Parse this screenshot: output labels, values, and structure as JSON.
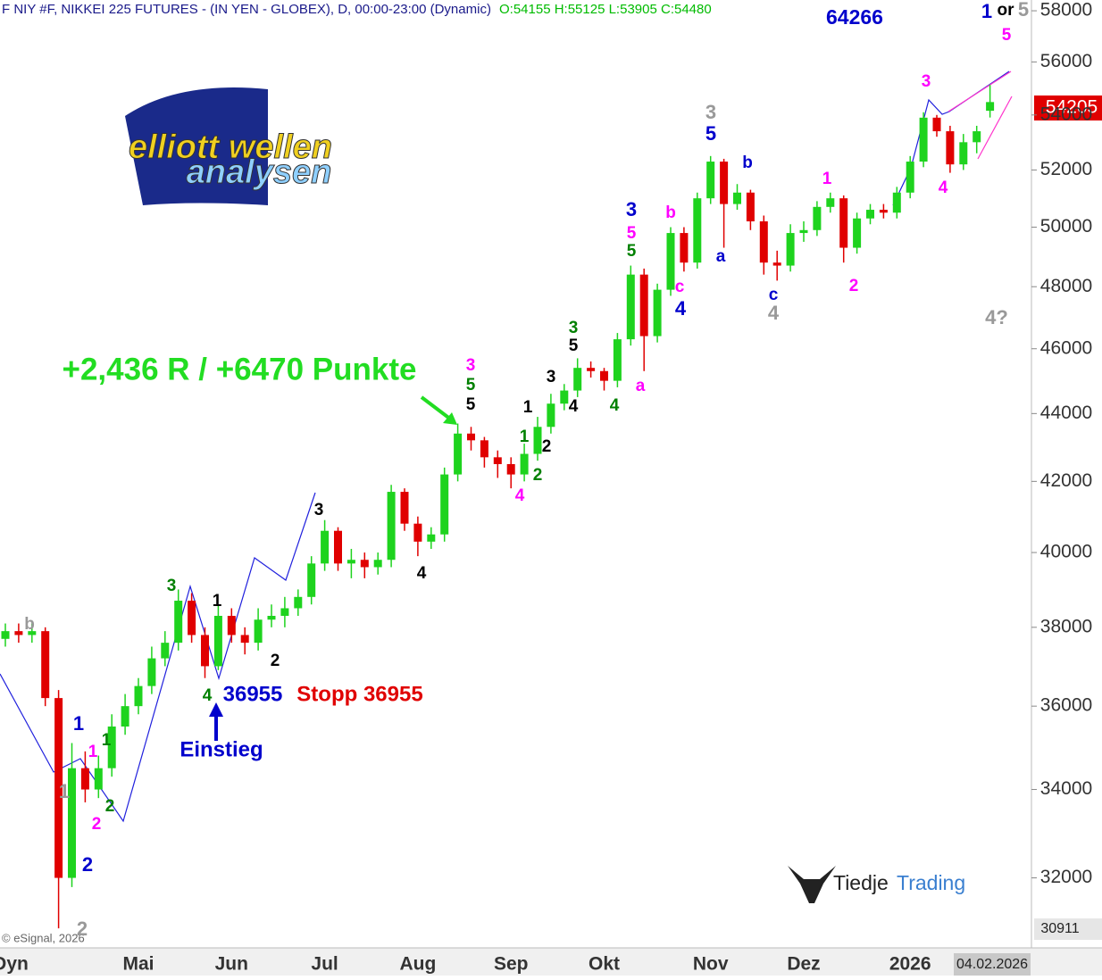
{
  "chart_data": {
    "type": "candlestick",
    "title": "F NIY #F, NIKKEI 225 FUTURES - (IN YEN - GLOBEX), D, 00:00-23:00 (Dynamic)",
    "ohlc_header": "O:54155 H:55125 L:53905 C:54480",
    "log_scale": true,
    "ylim": [
      30500,
      58430
    ],
    "yticks": [
      32000,
      34000,
      36000,
      38000,
      40000,
      42000,
      44000,
      46000,
      48000,
      50000,
      52000,
      54000,
      56000,
      58000
    ],
    "up_color": "#1ed31e",
    "down_color": "#e00000",
    "categories": [
      "Dyn",
      null,
      null,
      null,
      null,
      null,
      null,
      null,
      null,
      null,
      "Mai",
      null,
      null,
      null,
      null,
      null,
      null,
      "Jun",
      null,
      null,
      null,
      null,
      null,
      null,
      "Jul",
      null,
      null,
      null,
      null,
      null,
      null,
      "Aug",
      null,
      null,
      null,
      null,
      null,
      null,
      "Sep",
      null,
      null,
      null,
      null,
      null,
      null,
      "Okt",
      null,
      null,
      null,
      null,
      null,
      null,
      null,
      "Nov",
      null,
      null,
      null,
      null,
      null,
      null,
      "Dez",
      null,
      null,
      null,
      null,
      null,
      null,
      null,
      "2026",
      null,
      null,
      null,
      null,
      null,
      null,
      null
    ],
    "ohlc": [
      [
        37700,
        38100,
        37500,
        37900
      ],
      [
        37900,
        38100,
        37600,
        37800
      ],
      [
        37800,
        38100,
        37600,
        37900
      ],
      [
        37900,
        38000,
        36000,
        36200
      ],
      [
        36200,
        36400,
        30911,
        32000
      ],
      [
        32000,
        35100,
        31800,
        34500
      ],
      [
        34500,
        34900,
        33700,
        34000
      ],
      [
        34000,
        34800,
        33800,
        34500
      ],
      [
        34500,
        35800,
        34300,
        35500
      ],
      [
        35500,
        36300,
        35300,
        36000
      ],
      [
        36000,
        36700,
        35800,
        36500
      ],
      [
        36500,
        37500,
        36300,
        37200
      ],
      [
        37200,
        37900,
        37000,
        37600
      ],
      [
        37600,
        39000,
        37400,
        38700
      ],
      [
        38700,
        38900,
        37600,
        37800
      ],
      [
        37800,
        38000,
        36700,
        37000
      ],
      [
        37000,
        38600,
        36900,
        38300
      ],
      [
        38300,
        38500,
        37600,
        37800
      ],
      [
        37800,
        38000,
        37300,
        37600
      ],
      [
        37600,
        38500,
        37400,
        38200
      ],
      [
        38200,
        38600,
        38000,
        38300
      ],
      [
        38300,
        38800,
        38000,
        38500
      ],
      [
        38500,
        39000,
        38300,
        38800
      ],
      [
        38800,
        39900,
        38600,
        39700
      ],
      [
        39700,
        40900,
        39500,
        40600
      ],
      [
        40600,
        40700,
        39500,
        39700
      ],
      [
        39700,
        40100,
        39300,
        39800
      ],
      [
        39800,
        40000,
        39300,
        39600
      ],
      [
        39600,
        40000,
        39400,
        39800
      ],
      [
        39800,
        41900,
        39600,
        41700
      ],
      [
        41700,
        41800,
        40600,
        40800
      ],
      [
        40800,
        41000,
        39900,
        40300
      ],
      [
        40300,
        40700,
        40100,
        40500
      ],
      [
        40500,
        42400,
        40300,
        42200
      ],
      [
        42200,
        43700,
        42000,
        43400
      ],
      [
        43400,
        43600,
        42900,
        43200
      ],
      [
        43200,
        43300,
        42400,
        42700
      ],
      [
        42700,
        42900,
        42100,
        42500
      ],
      [
        42500,
        42700,
        41800,
        42200
      ],
      [
        42200,
        43100,
        42000,
        42800
      ],
      [
        42800,
        43900,
        42600,
        43600
      ],
      [
        43600,
        44600,
        43400,
        44300
      ],
      [
        44300,
        44900,
        44100,
        44700
      ],
      [
        44700,
        45700,
        44500,
        45400
      ],
      [
        45400,
        45600,
        45100,
        45300
      ],
      [
        45300,
        45400,
        44700,
        45000
      ],
      [
        45000,
        46500,
        44800,
        46300
      ],
      [
        46300,
        48700,
        46100,
        48400
      ],
      [
        48400,
        48600,
        45300,
        46400
      ],
      [
        46400,
        48100,
        46200,
        47900
      ],
      [
        47900,
        50000,
        47700,
        49800
      ],
      [
        49800,
        50000,
        48500,
        48800
      ],
      [
        48800,
        51200,
        48600,
        51000
      ],
      [
        51000,
        52500,
        50800,
        52300
      ],
      [
        52300,
        52400,
        49300,
        50800
      ],
      [
        50800,
        51500,
        50600,
        51200
      ],
      [
        51200,
        51300,
        49900,
        50200
      ],
      [
        50200,
        50400,
        48400,
        48800
      ],
      [
        48800,
        49200,
        48200,
        48700
      ],
      [
        48700,
        50100,
        48500,
        49800
      ],
      [
        49800,
        50200,
        49500,
        49900
      ],
      [
        49900,
        50900,
        49700,
        50700
      ],
      [
        50700,
        51200,
        50500,
        51000
      ],
      [
        51000,
        51100,
        48800,
        49300
      ],
      [
        49300,
        50500,
        49100,
        50300
      ],
      [
        50300,
        50800,
        50100,
        50600
      ],
      [
        50600,
        50800,
        50300,
        50500
      ],
      [
        50500,
        51400,
        50300,
        51200
      ],
      [
        51200,
        52500,
        51000,
        52300
      ],
      [
        52300,
        54100,
        52100,
        53900
      ],
      [
        53900,
        54000,
        53200,
        53400
      ],
      [
        53400,
        53600,
        51900,
        52200
      ],
      [
        52200,
        53300,
        52000,
        53000
      ],
      [
        53000,
        53600,
        52600,
        53400
      ],
      [
        54155,
        55125,
        53905,
        54480
      ]
    ],
    "price_tag": "54205",
    "low_tag": "30911",
    "date_tag": "04.02.2026",
    "copyright": "© eSignal, 2026",
    "logo": [
      "elliott wellen",
      "analysen"
    ],
    "brand": [
      "Tiedje",
      "Trading"
    ],
    "headline": "+2,436 R / +6470 Punkte",
    "entry_level": "36955",
    "stop": "Stopp 36955",
    "entry": "Einstieg",
    "target": "64266",
    "annotations": [
      {
        "text": "b",
        "color": "#999999"
      },
      {
        "text": "1",
        "color": "#0000cc"
      },
      {
        "text": "1",
        "color": "#999999"
      },
      {
        "text": "1",
        "color": "#ff00ff"
      },
      {
        "text": "1",
        "color": "#008000"
      },
      {
        "text": "2",
        "color": "#ff00ff"
      },
      {
        "text": "2",
        "color": "#008000"
      },
      {
        "text": "2",
        "color": "#0000cc"
      },
      {
        "text": "2",
        "color": "#999999"
      },
      {
        "text": "3",
        "color": "#008000"
      },
      {
        "text": "1",
        "color": "#000000"
      },
      {
        "text": "2",
        "color": "#000000"
      },
      {
        "text": "4",
        "color": "#008000"
      },
      {
        "text": "3",
        "color": "#000000"
      },
      {
        "text": "4",
        "color": "#000000"
      },
      {
        "text": "3",
        "color": "#ff00ff"
      },
      {
        "text": "5",
        "color": "#008000"
      },
      {
        "text": "5",
        "color": "#000000"
      },
      {
        "text": "4",
        "color": "#ff00ff"
      },
      {
        "text": "1",
        "color": "#008000"
      },
      {
        "text": "2",
        "color": "#008000"
      },
      {
        "text": "1",
        "color": "#000000"
      },
      {
        "text": "2",
        "color": "#000000"
      },
      {
        "text": "3",
        "color": "#000000"
      },
      {
        "text": "3",
        "color": "#008000"
      },
      {
        "text": "5",
        "color": "#000000"
      },
      {
        "text": "4",
        "color": "#000000"
      },
      {
        "text": "4",
        "color": "#008000"
      },
      {
        "text": "3",
        "color": "#0000cc"
      },
      {
        "text": "5",
        "color": "#ff00ff"
      },
      {
        "text": "5",
        "color": "#008000"
      },
      {
        "text": "a",
        "color": "#ff00ff"
      },
      {
        "text": "b",
        "color": "#ff00ff"
      },
      {
        "text": "c",
        "color": "#ff00ff"
      },
      {
        "text": "4",
        "color": "#0000cc"
      },
      {
        "text": "3",
        "color": "#999999"
      },
      {
        "text": "5",
        "color": "#0000cc"
      },
      {
        "text": "b",
        "color": "#0000cc"
      },
      {
        "text": "a",
        "color": "#0000cc"
      },
      {
        "text": "c",
        "color": "#0000cc"
      },
      {
        "text": "4",
        "color": "#999999"
      },
      {
        "text": "1",
        "color": "#ff00ff"
      },
      {
        "text": "2",
        "color": "#ff00ff"
      },
      {
        "text": "3",
        "color": "#ff00ff"
      },
      {
        "text": "4",
        "color": "#ff00ff"
      },
      {
        "text": "4?",
        "color": "#999999"
      },
      {
        "text": "1",
        "color": "#0000cc"
      },
      {
        "text": "or",
        "color": "#000000"
      },
      {
        "text": "5",
        "color": "#999999"
      },
      {
        "text": "5",
        "color": "#ff00ff"
      }
    ]
  }
}
